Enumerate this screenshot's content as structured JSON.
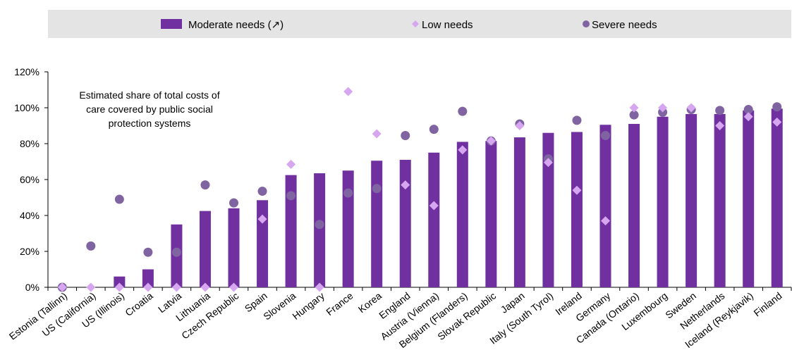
{
  "chart_data": {
    "type": "bar",
    "annotation": [
      "Estimated share of total costs of",
      "care covered by public social",
      "protection systems"
    ],
    "ylim": [
      0,
      120
    ],
    "yticks": [
      "0%",
      "20%",
      "40%",
      "60%",
      "80%",
      "100%",
      "120%"
    ],
    "grid": false,
    "legend_placement": "top",
    "categories": [
      "Estonia (Tallinn)",
      "US (California)",
      "US (Illinois)",
      "Croatia",
      "Latvia",
      "Lithuania",
      "Czech Republic",
      "Spain",
      "Slovenia",
      "Hungary",
      "France",
      "Korea",
      "England",
      "Austria (Vienna)",
      "Belgium (Flanders)",
      "Slovak Republic",
      "Japan",
      "Italy (South Tyrol)",
      "Ireland",
      "Germany",
      "Canada (Ontario)",
      "Luxembourg",
      "Sweden",
      "Netherlands",
      "Iceland (Reykjavik)",
      "Finland"
    ],
    "series": [
      {
        "name": "Moderate needs (↗)",
        "kind": "bar",
        "color": "#7030A0",
        "values": [
          0,
          0,
          6,
          10,
          35,
          42.5,
          44,
          48.5,
          62.5,
          63.5,
          65,
          70.5,
          71,
          75,
          81,
          81.5,
          83.5,
          86,
          86.5,
          90.5,
          91,
          95,
          96.5,
          96.5,
          98.5,
          99.5
        ]
      },
      {
        "name": "Low needs",
        "kind": "diamond",
        "color": "#D6A6F0",
        "values": [
          0,
          0,
          0,
          0,
          0,
          0,
          0,
          38,
          68.5,
          0,
          109,
          85.5,
          57,
          45.5,
          76.5,
          81.5,
          90,
          69.5,
          54,
          37,
          100,
          100,
          100,
          90,
          95,
          92
        ]
      },
      {
        "name": "Severe needs",
        "kind": "circle",
        "color": "#8064A2",
        "values": [
          0,
          23,
          49,
          19.5,
          19.5,
          57,
          47,
          53.5,
          51,
          35,
          52.5,
          55,
          84.5,
          88,
          98,
          81.5,
          91,
          71.5,
          93,
          84.5,
          96,
          97.5,
          99,
          98.5,
          99,
          100.5
        ]
      }
    ]
  }
}
